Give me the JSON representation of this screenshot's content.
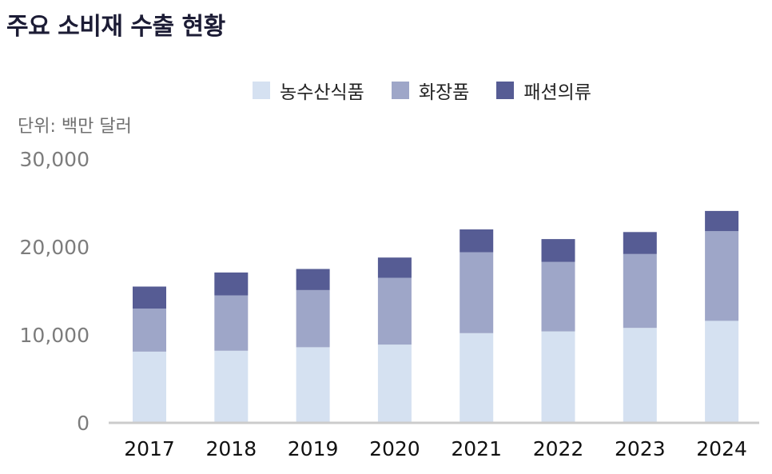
{
  "title": "주요 소비재 수출 현황",
  "unit": "단위: 백만 달러",
  "chart_data": {
    "type": "bar",
    "stacked": true,
    "categories": [
      "2017",
      "2018",
      "2019",
      "2020",
      "2021",
      "2022",
      "2023",
      "2024"
    ],
    "series": [
      {
        "name": "농수산식품",
        "color": "#d5e1f1",
        "values": [
          8100,
          8200,
          8600,
          8900,
          10200,
          10400,
          10800,
          11600
        ]
      },
      {
        "name": "화장품",
        "color": "#9ea6c8",
        "values": [
          4900,
          6300,
          6500,
          7600,
          9200,
          7900,
          8400,
          10200
        ]
      },
      {
        "name": "패션의류",
        "color": "#565c94",
        "values": [
          2500,
          2600,
          2400,
          2300,
          2600,
          2600,
          2500,
          2300
        ]
      }
    ],
    "yticks": [
      "0",
      "10,000",
      "20,000",
      "30,000"
    ],
    "ylim": [
      0,
      30000
    ],
    "legend_position": "top-center",
    "grid": false
  }
}
